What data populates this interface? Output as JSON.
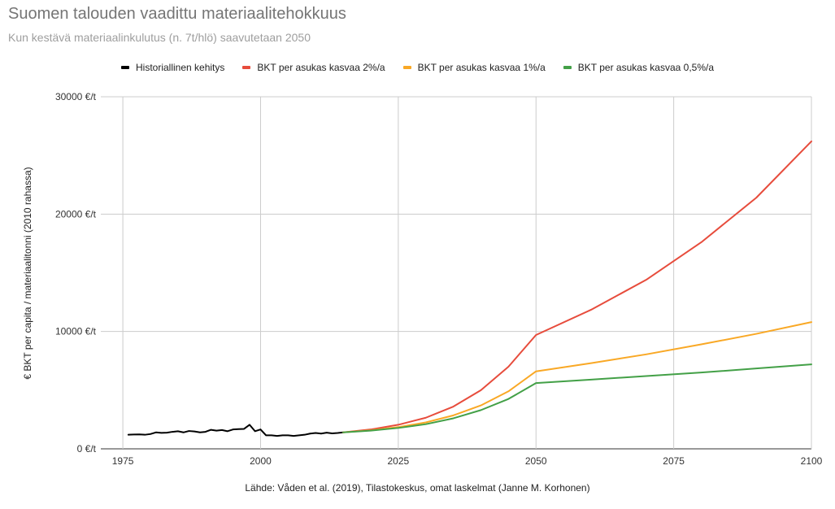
{
  "chart_data": {
    "type": "line",
    "title": "Suomen talouden vaadittu materiaalitehokkuus",
    "subtitle": "Kun kestävä materiaalinkulutus (n. 7t/hlö) saavutetaan 2050",
    "xlabel": "",
    "ylabel": "€ BKT per capita / materiaalitonni (2010 rahassa)",
    "source": "Lähde: Våden et al. (2019), Tilastokeskus, omat laskelmat (Janne M. Korhonen)",
    "xlim": [
      1971,
      2100
    ],
    "ylim": [
      0,
      30000
    ],
    "x_ticks": [
      1975,
      2000,
      2025,
      2050,
      2075,
      2100
    ],
    "y_ticks": [
      0,
      10000,
      20000,
      30000
    ],
    "y_tick_labels": [
      "0 €/t",
      "10000 €/t",
      "20000 €/t",
      "30000 €/t"
    ],
    "grid": true,
    "legend_position": "top",
    "series": [
      {
        "name": "Historiallinen kehitys",
        "color": "#000000",
        "points": [
          [
            1976,
            1200
          ],
          [
            1977,
            1220
          ],
          [
            1978,
            1230
          ],
          [
            1979,
            1200
          ],
          [
            1980,
            1260
          ],
          [
            1981,
            1400
          ],
          [
            1982,
            1360
          ],
          [
            1983,
            1380
          ],
          [
            1984,
            1450
          ],
          [
            1985,
            1500
          ],
          [
            1986,
            1400
          ],
          [
            1987,
            1520
          ],
          [
            1988,
            1480
          ],
          [
            1989,
            1400
          ],
          [
            1990,
            1450
          ],
          [
            1991,
            1620
          ],
          [
            1992,
            1550
          ],
          [
            1993,
            1600
          ],
          [
            1994,
            1500
          ],
          [
            1995,
            1650
          ],
          [
            1996,
            1680
          ],
          [
            1997,
            1700
          ],
          [
            1998,
            2050
          ],
          [
            1999,
            1500
          ],
          [
            2000,
            1650
          ],
          [
            2001,
            1150
          ],
          [
            2002,
            1150
          ],
          [
            2003,
            1100
          ],
          [
            2004,
            1150
          ],
          [
            2005,
            1150
          ],
          [
            2006,
            1100
          ],
          [
            2007,
            1150
          ],
          [
            2008,
            1200
          ],
          [
            2009,
            1300
          ],
          [
            2010,
            1350
          ],
          [
            2011,
            1300
          ],
          [
            2012,
            1380
          ],
          [
            2013,
            1320
          ],
          [
            2014,
            1350
          ],
          [
            2015,
            1400
          ]
        ]
      },
      {
        "name": "BKT per asukas kasvaa 2%/a",
        "color": "#e74c3c",
        "points": [
          [
            2015,
            1400
          ],
          [
            2020,
            1650
          ],
          [
            2025,
            2050
          ],
          [
            2030,
            2650
          ],
          [
            2035,
            3600
          ],
          [
            2040,
            5000
          ],
          [
            2045,
            7000
          ],
          [
            2050,
            9700
          ],
          [
            2060,
            11850
          ],
          [
            2070,
            14400
          ],
          [
            2080,
            17600
          ],
          [
            2090,
            21400
          ],
          [
            2100,
            26200
          ]
        ]
      },
      {
        "name": "BKT per asukas kasvaa 1%/a",
        "color": "#f9a825",
        "points": [
          [
            2015,
            1400
          ],
          [
            2020,
            1580
          ],
          [
            2025,
            1850
          ],
          [
            2030,
            2250
          ],
          [
            2035,
            2850
          ],
          [
            2040,
            3700
          ],
          [
            2045,
            4900
          ],
          [
            2050,
            6600
          ],
          [
            2060,
            7300
          ],
          [
            2070,
            8050
          ],
          [
            2080,
            8900
          ],
          [
            2090,
            9800
          ],
          [
            2100,
            10800
          ]
        ]
      },
      {
        "name": "BKT per asukas kasvaa 0,5%/a",
        "color": "#43a047",
        "points": [
          [
            2015,
            1400
          ],
          [
            2020,
            1550
          ],
          [
            2025,
            1780
          ],
          [
            2030,
            2100
          ],
          [
            2035,
            2600
          ],
          [
            2040,
            3300
          ],
          [
            2045,
            4250
          ],
          [
            2050,
            5600
          ],
          [
            2060,
            5900
          ],
          [
            2070,
            6200
          ],
          [
            2080,
            6500
          ],
          [
            2090,
            6850
          ],
          [
            2100,
            7200
          ]
        ]
      }
    ]
  }
}
